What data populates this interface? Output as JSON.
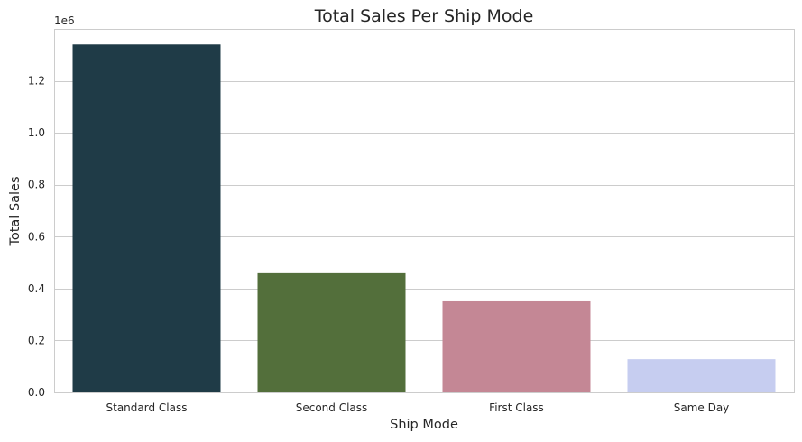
{
  "chart_data": {
    "type": "bar",
    "title": "Total Sales Per Ship Mode",
    "xlabel": "Ship Mode",
    "ylabel": "Total Sales",
    "y_scale_label": "1e6",
    "categories": [
      "Standard Class",
      "Second Class",
      "First Class",
      "Same Day"
    ],
    "values": [
      1340000,
      459000,
      351000,
      128000
    ],
    "colors": [
      "#1f3b47",
      "#536f3b",
      "#c48795",
      "#c6cdf0"
    ],
    "ylim": [
      0,
      1400000
    ],
    "yticks": [
      0,
      200000,
      400000,
      600000,
      800000,
      1000000,
      1200000
    ],
    "ytick_labels": [
      "0.0",
      "0.2",
      "0.4",
      "0.6",
      "0.8",
      "1.0",
      "1.2"
    ],
    "grid": "horizontal"
  }
}
